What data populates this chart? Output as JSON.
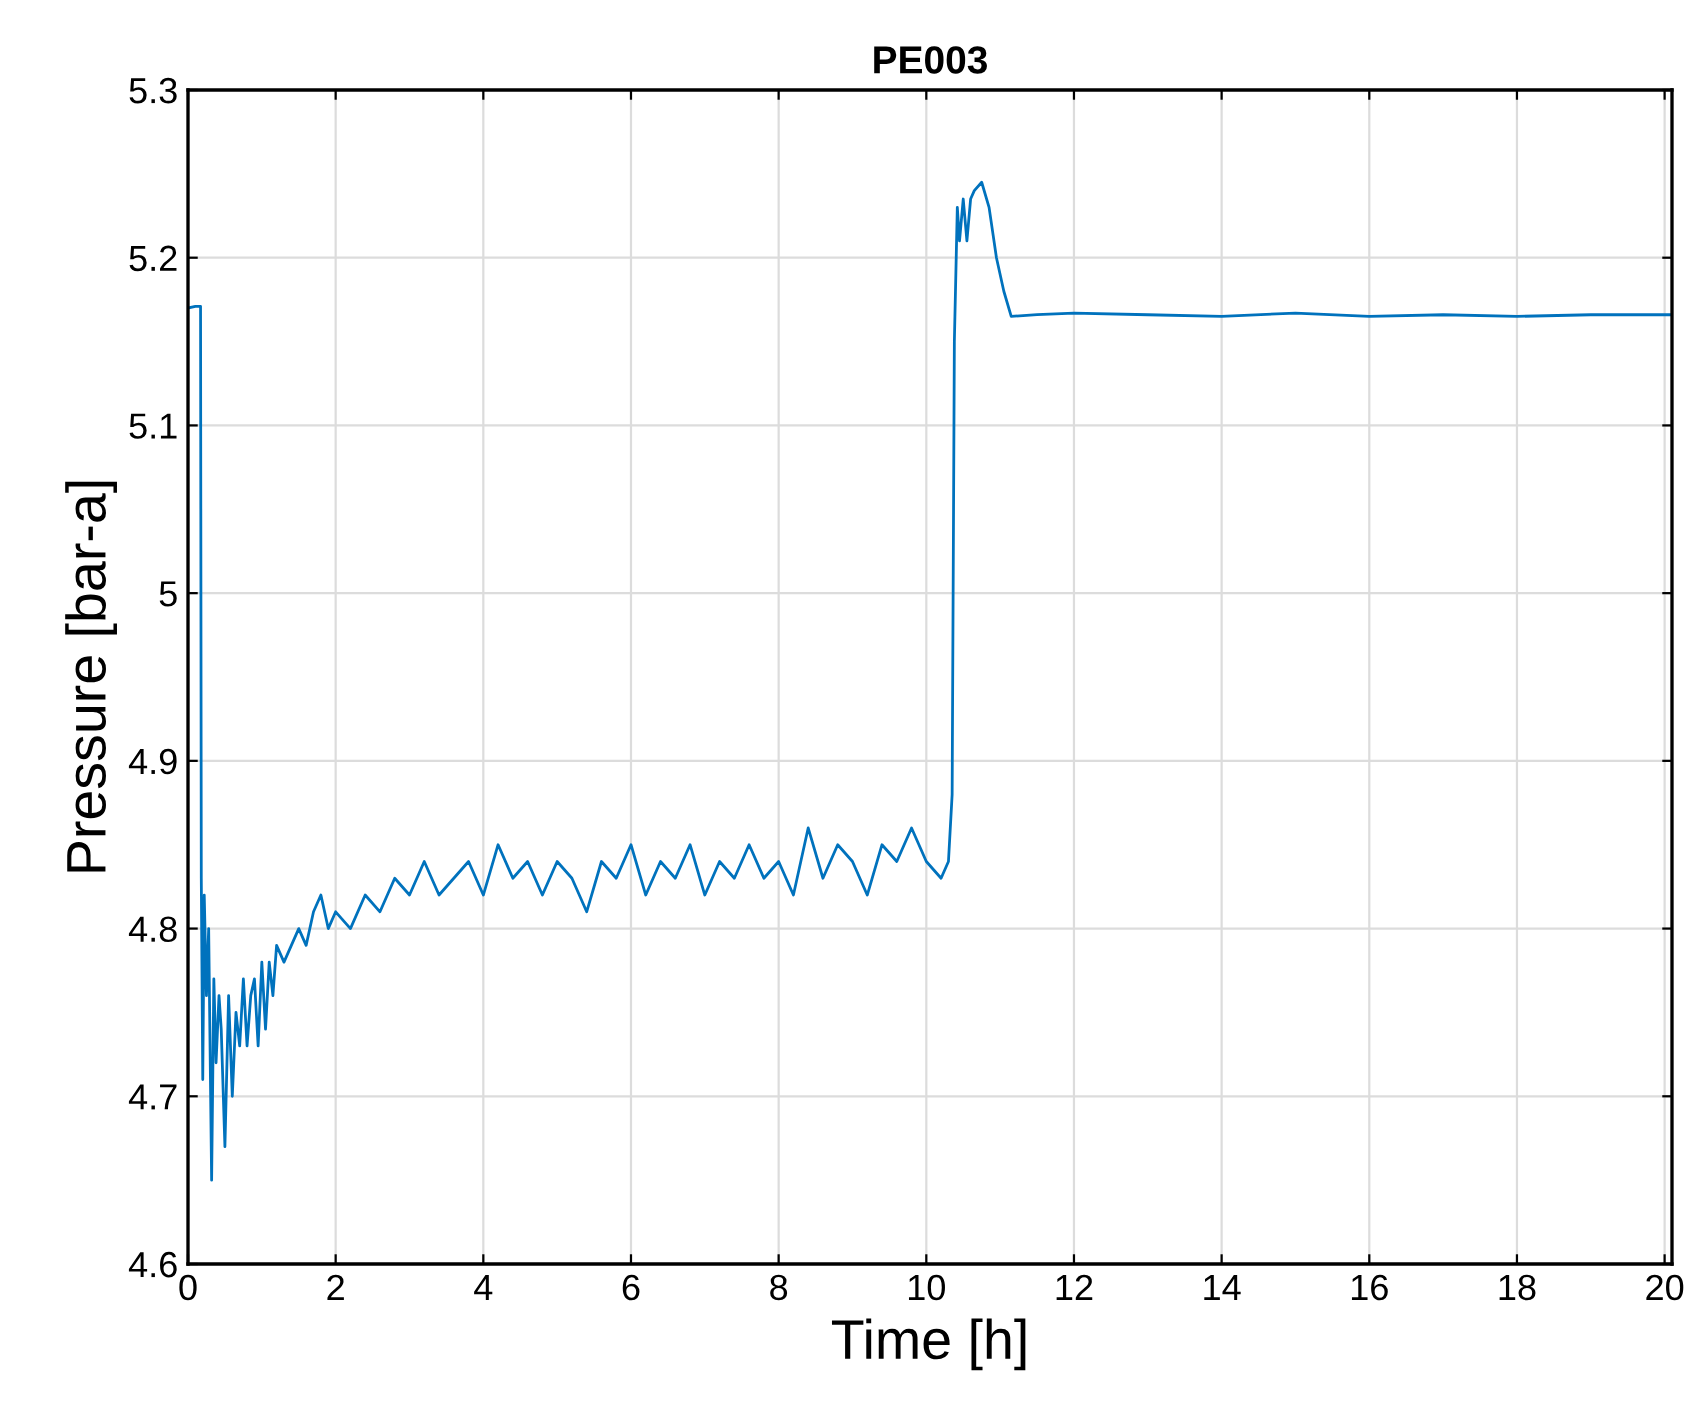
{
  "chart_data": {
    "type": "line",
    "title": "PE003",
    "xlabel": "Time [h]",
    "ylabel": "Pressure [bar-a]",
    "xlim": [
      0,
      20.1
    ],
    "ylim": [
      4.6,
      5.3
    ],
    "xticks": [
      0,
      2,
      4,
      6,
      8,
      10,
      12,
      14,
      16,
      18,
      20
    ],
    "yticks": [
      4.6,
      4.7,
      4.8,
      4.9,
      5,
      5.1,
      5.2,
      5.3
    ],
    "grid": true,
    "series": [
      {
        "color": "#0072bd",
        "x": [
          0,
          0.1,
          0.17,
          0.18,
          0.2,
          0.22,
          0.25,
          0.28,
          0.32,
          0.35,
          0.38,
          0.42,
          0.45,
          0.5,
          0.55,
          0.6,
          0.65,
          0.7,
          0.75,
          0.8,
          0.85,
          0.9,
          0.95,
          1.0,
          1.05,
          1.1,
          1.15,
          1.2,
          1.3,
          1.4,
          1.5,
          1.6,
          1.7,
          1.8,
          1.9,
          2.0,
          2.2,
          2.4,
          2.6,
          2.8,
          3.0,
          3.2,
          3.4,
          3.6,
          3.8,
          4.0,
          4.2,
          4.4,
          4.6,
          4.8,
          5.0,
          5.2,
          5.4,
          5.6,
          5.8,
          6.0,
          6.2,
          6.4,
          6.6,
          6.8,
          7.0,
          7.2,
          7.4,
          7.6,
          7.8,
          8.0,
          8.2,
          8.4,
          8.6,
          8.8,
          9.0,
          9.2,
          9.4,
          9.6,
          9.8,
          10.0,
          10.2,
          10.3,
          10.35,
          10.38,
          10.42,
          10.45,
          10.5,
          10.55,
          10.6,
          10.65,
          10.75,
          10.85,
          10.95,
          11.05,
          11.15,
          11.5,
          12,
          13,
          14,
          15,
          16,
          17,
          18,
          19,
          20,
          20.1
        ],
        "values": [
          5.17,
          5.171,
          5.171,
          4.83,
          4.71,
          4.82,
          4.76,
          4.8,
          4.65,
          4.77,
          4.72,
          4.76,
          4.74,
          4.67,
          4.76,
          4.7,
          4.75,
          4.73,
          4.77,
          4.73,
          4.76,
          4.77,
          4.73,
          4.78,
          4.74,
          4.78,
          4.76,
          4.79,
          4.78,
          4.79,
          4.8,
          4.79,
          4.81,
          4.82,
          4.8,
          4.81,
          4.8,
          4.82,
          4.81,
          4.83,
          4.82,
          4.84,
          4.82,
          4.83,
          4.84,
          4.82,
          4.85,
          4.83,
          4.84,
          4.82,
          4.84,
          4.83,
          4.81,
          4.84,
          4.83,
          4.85,
          4.82,
          4.84,
          4.83,
          4.85,
          4.82,
          4.84,
          4.83,
          4.85,
          4.83,
          4.84,
          4.82,
          4.86,
          4.83,
          4.85,
          4.84,
          4.82,
          4.85,
          4.84,
          4.86,
          4.84,
          4.83,
          4.84,
          4.88,
          5.15,
          5.23,
          5.21,
          5.235,
          5.21,
          5.235,
          5.24,
          5.245,
          5.23,
          5.2,
          5.18,
          5.165,
          5.166,
          5.167,
          5.166,
          5.165,
          5.167,
          5.165,
          5.166,
          5.165,
          5.166,
          5.166,
          5.166
        ]
      }
    ]
  }
}
